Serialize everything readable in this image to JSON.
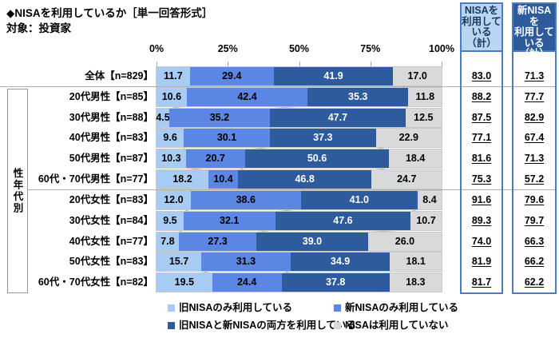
{
  "title": "◆NISAを利用しているか［単一回答形式］",
  "subtitle": "対象：投資家",
  "chart_data": {
    "type": "bar",
    "stacked": true,
    "orientation": "horizontal",
    "value_unit": "%",
    "title": "◆NISAを利用しているか［単一回答形式］",
    "subtitle": "対象：投資家",
    "x_axis": {
      "ticks": [
        "0%",
        "25%",
        "50%",
        "75%",
        "100%"
      ],
      "range": [
        0,
        100
      ],
      "position": "top",
      "gridlines": false
    },
    "categories": [
      "全体【n=829】",
      "20代男性【n=85】",
      "30代男性【n=88】",
      "40代男性【n=83】",
      "50代男性【n=87】",
      "60代・70代男性【n=77】",
      "20代女性【n=83】",
      "30代女性【n=84】",
      "40代女性【n=77】",
      "50代女性【n=83】",
      "60代・70代女性【n=82】"
    ],
    "category_group": {
      "label": "性年代別",
      "from_index": 1,
      "to_index": 10
    },
    "series": [
      {
        "name": "旧NISAのみ利用している",
        "color": "#A7CBF2",
        "label_color": "#000000",
        "values": [
          11.7,
          10.6,
          4.5,
          9.6,
          10.3,
          18.2,
          12.0,
          9.5,
          7.8,
          15.7,
          19.5
        ]
      },
      {
        "name": "新NISAのみ利用している",
        "color": "#5C86E3",
        "label_color": "#000000",
        "values": [
          29.4,
          42.4,
          35.2,
          30.1,
          20.7,
          10.4,
          38.6,
          32.1,
          27.3,
          31.3,
          24.4
        ]
      },
      {
        "name": "旧NISAと新NISAの両方を利用している",
        "color": "#2E5B9C",
        "label_color": "#FFFFFF",
        "values": [
          41.9,
          35.3,
          47.7,
          37.3,
          50.6,
          46.8,
          41.0,
          47.6,
          39.0,
          34.9,
          37.8
        ]
      },
      {
        "name": "NISAは利用していない",
        "color": "#D9D9D9",
        "label_color": "#000000",
        "values": [
          17.0,
          11.8,
          12.5,
          22.9,
          18.4,
          24.7,
          8.4,
          10.7,
          26.0,
          18.1,
          18.3
        ]
      }
    ],
    "summary_columns": [
      {
        "header": "NISAを利用している（計）",
        "header_lines": "NISAを\n利用して\nいる\n（計）",
        "header_bg": "#B9D5F2",
        "header_color": "#17375E",
        "values": [
          83.0,
          88.2,
          87.5,
          77.1,
          81.6,
          75.3,
          91.6,
          89.3,
          74.0,
          81.9,
          81.7
        ]
      },
      {
        "header": "新NISAを利用している（計）",
        "header_lines": "新NISAを\n利用して\nいる\n（計）",
        "header_bg": "#2E5B9C",
        "header_color": "#FFFFFF",
        "values": [
          71.3,
          77.7,
          82.9,
          67.4,
          71.3,
          57.2,
          79.6,
          79.7,
          66.3,
          66.2,
          62.2
        ]
      }
    ],
    "legend": {
      "position": "bottom",
      "columns": 2
    }
  },
  "colors": {
    "summary_box_border": "#4A7CC0",
    "separator": "#B0B0B0",
    "bar_outline": "#C9C9C9"
  }
}
